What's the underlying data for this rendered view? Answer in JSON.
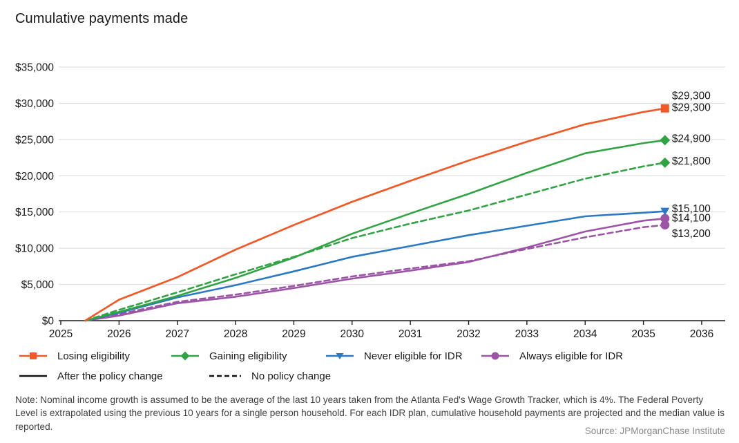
{
  "title": "Cumulative payments made",
  "note": "Note: Nominal income growth is assumed to be the average of the last 10 years taken from the Atlanta Fed's Wage Growth Tracker, which is 4%. The Federal Poverty Level is extrapolated using the previous 10 years for a single person household. For each IDR plan, cumulative household payments are projected and the median value is reported.",
  "source": "Source: JPMorganChase Institute",
  "colors": {
    "losing": "#F05A28",
    "gaining": "#31A344",
    "never": "#2B78C5",
    "always": "#9C55A6",
    "grid": "#d9d9d9",
    "axis": "#1a1a1a",
    "tick_text": "#1a1a1a",
    "legend_line": "#111111"
  },
  "legend": {
    "series": [
      {
        "key": "losing",
        "label": "Losing eligibility",
        "marker": "square"
      },
      {
        "key": "gaining",
        "label": "Gaining eligibility",
        "marker": "diamond"
      },
      {
        "key": "never",
        "label": "Never eligible for IDR",
        "marker": "triangle-down"
      },
      {
        "key": "always",
        "label": "Always eligible for IDR",
        "marker": "circle"
      }
    ],
    "styles": [
      {
        "label": "After the policy change",
        "dash": false
      },
      {
        "label": "No policy change",
        "dash": true
      }
    ]
  },
  "chart_data": {
    "type": "line",
    "title": "Cumulative payments made",
    "xlabel": "",
    "ylabel": "",
    "xlim": [
      2025,
      2036.4
    ],
    "ylim": [
      0,
      35000
    ],
    "grid": true,
    "x_ticks": [
      2025,
      2026,
      2027,
      2028,
      2029,
      2030,
      2031,
      2032,
      2033,
      2034,
      2035,
      2036
    ],
    "y_ticks": [
      {
        "value": 0,
        "label": "$0"
      },
      {
        "value": 5000,
        "label": "$5,000"
      },
      {
        "value": 10000,
        "label": "$10,000"
      },
      {
        "value": 15000,
        "label": "$15,000"
      },
      {
        "value": 20000,
        "label": "$20,000"
      },
      {
        "value": 25000,
        "label": "$25,000"
      },
      {
        "value": 30000,
        "label": "$30,000"
      },
      {
        "value": 35000,
        "label": "$35,000"
      }
    ],
    "x": [
      2025.42,
      2026,
      2027,
      2028,
      2029,
      2030,
      2031,
      2032,
      2033,
      2034,
      2035,
      2035.37
    ],
    "values_estimated": true,
    "series": [
      {
        "name": "Always eligible for IDR — No policy change",
        "color_key": "always",
        "dash": true,
        "marker": "circle",
        "values": [
          0,
          900,
          2600,
          3600,
          4800,
          6100,
          7200,
          8200,
          9900,
          11500,
          12900,
          13200
        ],
        "end_label": "$13,200",
        "end_label_dy": 12
      },
      {
        "name": "Always eligible for IDR — After the policy change",
        "color_key": "always",
        "dash": false,
        "marker": "circle",
        "values": [
          0,
          700,
          2400,
          3300,
          4500,
          5800,
          6900,
          8100,
          10100,
          12300,
          13800,
          14100
        ],
        "end_label": "$14,100",
        "end_label_dy": -1
      },
      {
        "name": "Never eligible for IDR — After the policy change",
        "color_key": "never",
        "dash": false,
        "marker": "triangle-down",
        "values": [
          0,
          1100,
          3200,
          4900,
          6800,
          8800,
          10300,
          11800,
          13100,
          14400,
          14900,
          15100
        ],
        "end_label": "$15,100",
        "end_label_dy": -4
      },
      {
        "name": "Gaining eligibility — No policy change",
        "color_key": "gaining",
        "dash": true,
        "marker": "diamond",
        "values": [
          0,
          1500,
          3900,
          6400,
          8800,
          11400,
          13400,
          15200,
          17400,
          19600,
          21300,
          21800
        ],
        "end_label": "$21,800",
        "end_label_dy": -3
      },
      {
        "name": "Gaining eligibility — After the policy change",
        "color_key": "gaining",
        "dash": false,
        "marker": "diamond",
        "values": [
          0,
          1200,
          3400,
          5900,
          8700,
          12000,
          14800,
          17500,
          20400,
          23100,
          24500,
          24900
        ],
        "end_label": "$24,900",
        "end_label_dy": -3
      },
      {
        "name": "Losing eligibility — No policy change",
        "color_key": "losing",
        "dash": true,
        "marker": "none",
        "values": [
          0,
          2900,
          6000,
          9800,
          13200,
          16400,
          19300,
          22100,
          24700,
          27100,
          28800,
          29300
        ],
        "end_label": "$29,300",
        "end_label_dy": -19
      },
      {
        "name": "Losing eligibility — After the policy change",
        "color_key": "losing",
        "dash": false,
        "marker": "square",
        "values": [
          0,
          2900,
          6000,
          9800,
          13200,
          16400,
          19300,
          22100,
          24700,
          27100,
          28800,
          29300
        ],
        "end_label": "$29,300",
        "end_label_dy": -2
      }
    ]
  }
}
